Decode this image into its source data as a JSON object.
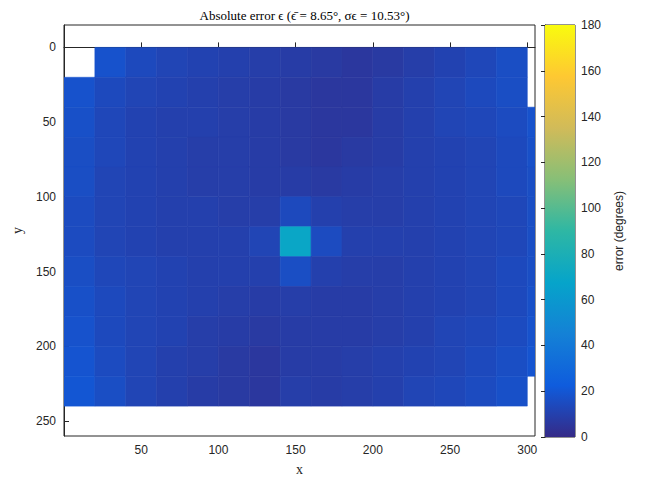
{
  "chart_data": {
    "type": "heatmap",
    "title": "Absolute error ϵ (ϵ̄ = 8.65°, σϵ = 10.53°)",
    "x_label": "x",
    "y_label": "y",
    "xlim": [
      0,
      305
    ],
    "ylim": [
      -15,
      260
    ],
    "xticks": [
      50,
      100,
      150,
      200,
      250,
      300
    ],
    "yticks": [
      0,
      50,
      100,
      150,
      200,
      250
    ],
    "grid": false,
    "cells": {
      "x_edges": [
        0,
        20,
        40,
        60,
        80,
        100,
        120,
        140,
        160,
        180,
        200,
        220,
        240,
        260,
        280,
        300,
        305
      ],
      "y_edges": [
        0,
        20,
        40,
        60,
        80,
        100,
        120,
        140,
        160,
        180,
        200,
        220,
        240
      ],
      "values": [
        [
          null,
          18,
          14,
          12,
          11,
          10,
          9,
          8,
          7,
          6,
          7,
          9,
          11,
          13,
          16,
          null
        ],
        [
          18,
          14,
          12,
          11,
          10,
          9,
          8,
          7,
          6,
          6,
          8,
          10,
          12,
          14,
          16,
          null
        ],
        [
          17,
          13,
          11,
          10,
          10,
          9,
          8,
          7,
          6,
          6,
          8,
          10,
          12,
          13,
          15,
          18
        ],
        [
          16,
          13,
          11,
          10,
          9,
          9,
          8,
          7,
          6,
          7,
          8,
          10,
          11,
          12,
          14,
          17
        ],
        [
          16,
          12,
          11,
          10,
          9,
          9,
          8,
          8,
          7,
          8,
          9,
          10,
          11,
          12,
          14,
          16
        ],
        [
          15,
          12,
          11,
          10,
          10,
          9,
          9,
          14,
          10,
          9,
          9,
          10,
          11,
          12,
          13,
          16
        ],
        [
          15,
          12,
          11,
          10,
          10,
          10,
          12,
          70,
          15,
          10,
          10,
          10,
          11,
          12,
          13,
          16
        ],
        [
          16,
          13,
          12,
          11,
          10,
          10,
          10,
          16,
          10,
          9,
          9,
          10,
          11,
          12,
          14,
          16
        ],
        [
          17,
          14,
          12,
          11,
          10,
          9,
          8,
          9,
          8,
          8,
          9,
          10,
          11,
          12,
          14,
          17
        ],
        [
          18,
          14,
          12,
          11,
          9,
          8,
          7,
          8,
          8,
          8,
          9,
          10,
          12,
          13,
          15,
          18
        ],
        [
          19,
          15,
          12,
          10,
          9,
          7,
          6,
          8,
          8,
          9,
          10,
          11,
          12,
          14,
          16,
          19
        ],
        [
          20,
          16,
          12,
          10,
          8,
          7,
          6,
          9,
          8,
          9,
          10,
          12,
          13,
          15,
          17,
          null
        ]
      ]
    },
    "colorbar": {
      "label": "error (degrees)",
      "range": [
        0,
        180
      ],
      "ticks": [
        0,
        20,
        40,
        60,
        80,
        100,
        120,
        140,
        160,
        180
      ]
    }
  }
}
